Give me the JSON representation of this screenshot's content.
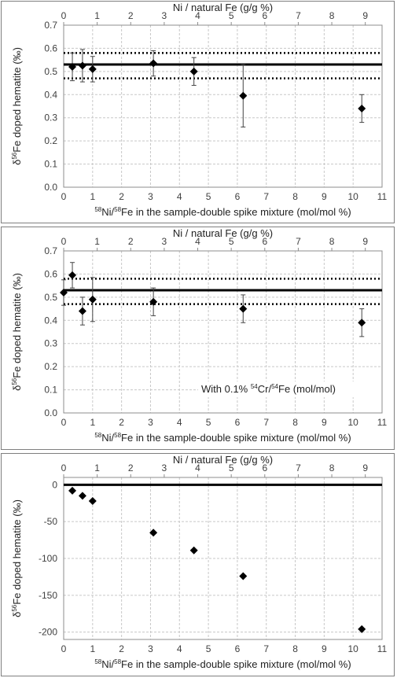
{
  "chart_data": [
    {
      "type": "scatter",
      "top_xlabel": "Ni / natural Fe (g/g %)",
      "xlabel": "Ni/Fe in the sample-double spike mixture (mol/mol %)",
      "xlabel_parts": {
        "sup1": "58",
        "t1": "Ni/",
        "sup2": "58",
        "t2": "Fe in the sample-double spike mixture (mol/mol %)"
      },
      "ylabel_parts": {
        "pre": "δ",
        "sup": "56",
        "post": "Fe doped hematite (‰)"
      },
      "xlim": [
        0,
        11
      ],
      "x_ticks": [
        "0",
        "1",
        "2",
        "3",
        "4",
        "5",
        "6",
        "7",
        "8",
        "9",
        "10",
        "11"
      ],
      "top_xlim": [
        0,
        9.5
      ],
      "top_ticks": [
        "0",
        "1",
        "2",
        "3",
        "4",
        "5",
        "6",
        "7",
        "8",
        "9"
      ],
      "ylim": [
        0,
        0.7
      ],
      "y_ticks": [
        "0.0",
        "0.1",
        "0.2",
        "0.3",
        "0.4",
        "0.5",
        "0.6",
        "0.7"
      ],
      "grid": true,
      "reference_line": 0.53,
      "dotted_lines": [
        0.47,
        0.58
      ],
      "points": [
        {
          "x": 0.3,
          "y": 0.52,
          "err": 0.06
        },
        {
          "x": 0.65,
          "y": 0.525,
          "err": 0.07
        },
        {
          "x": 1.0,
          "y": 0.51,
          "err": 0.055
        },
        {
          "x": 3.1,
          "y": 0.535,
          "err": 0.055
        },
        {
          "x": 4.5,
          "y": 0.5,
          "err": 0.06
        },
        {
          "x": 6.2,
          "y": 0.395,
          "err": 0.135
        },
        {
          "x": 10.3,
          "y": 0.34,
          "err": 0.06
        }
      ],
      "annotation": null
    },
    {
      "type": "scatter",
      "top_xlabel": "Ni / natural Fe (g/g %)",
      "xlabel": "Ni/Fe in the sample-double spike mixture (mol/mol %)",
      "xlabel_parts": {
        "sup1": "58",
        "t1": "Ni/",
        "sup2": "58",
        "t2": "Fe in the sample-double spike mixture (mol/mol %)"
      },
      "ylabel_parts": {
        "pre": "δ",
        "sup": "56",
        "post": "Fe doped hematite (‰)"
      },
      "xlim": [
        0,
        11
      ],
      "x_ticks": [
        "0",
        "1",
        "2",
        "3",
        "4",
        "5",
        "6",
        "7",
        "8",
        "9",
        "10",
        "11"
      ],
      "top_xlim": [
        0,
        9.5
      ],
      "top_ticks": [
        "0",
        "1",
        "2",
        "3",
        "4",
        "5",
        "6",
        "7",
        "8",
        "9"
      ],
      "ylim": [
        0,
        0.7
      ],
      "y_ticks": [
        "0.0",
        "0.1",
        "0.2",
        "0.3",
        "0.4",
        "0.5",
        "0.6",
        "0.7"
      ],
      "grid": true,
      "reference_line": 0.53,
      "dotted_lines": [
        0.47,
        0.58
      ],
      "points": [
        {
          "x": 0.0,
          "y": 0.52,
          "err": 0.055
        },
        {
          "x": 0.3,
          "y": 0.595,
          "err": 0.055
        },
        {
          "x": 0.65,
          "y": 0.44,
          "err": 0.06
        },
        {
          "x": 1.0,
          "y": 0.49,
          "err": 0.095
        },
        {
          "x": 3.1,
          "y": 0.48,
          "err": 0.06
        },
        {
          "x": 6.2,
          "y": 0.45,
          "err": 0.06
        },
        {
          "x": 10.3,
          "y": 0.39,
          "err": 0.06
        }
      ],
      "annotation": {
        "pre": "With 0.1% ",
        "sup1": "54",
        "mid": "Cr/",
        "sup2": "54",
        "post": "Fe (mol/mol)"
      }
    },
    {
      "type": "scatter",
      "top_xlabel": "Ni / natural Fe (g/g %)",
      "xlabel": "Ni/Fe in the sample-double spike mixture (mol/mol %)",
      "xlabel_parts": {
        "sup1": "58",
        "t1": "Ni/",
        "sup2": "58",
        "t2": "Fe in the sample-double spike mixture (mol/mol %)"
      },
      "ylabel_parts": {
        "pre": "δ",
        "sup": "56",
        "post": "Fe doped hematite (‰)"
      },
      "xlim": [
        0,
        11
      ],
      "x_ticks": [
        "0",
        "1",
        "2",
        "3",
        "4",
        "5",
        "6",
        "7",
        "8",
        "9",
        "10",
        "11"
      ],
      "top_xlim": [
        0,
        9.5
      ],
      "top_ticks": [
        "0",
        "1",
        "2",
        "3",
        "4",
        "5",
        "6",
        "7",
        "8",
        "9"
      ],
      "ylim": [
        -210,
        10
      ],
      "y_ticks": [
        "0",
        "-50",
        "-100",
        "-150",
        "-200"
      ],
      "y_tick_values": [
        0,
        -50,
        -100,
        -150,
        -200
      ],
      "grid": true,
      "reference_line": 0,
      "dotted_lines": [],
      "points": [
        {
          "x": 0.3,
          "y": -8
        },
        {
          "x": 0.65,
          "y": -15
        },
        {
          "x": 1.0,
          "y": -22
        },
        {
          "x": 3.1,
          "y": -65
        },
        {
          "x": 4.5,
          "y": -89
        },
        {
          "x": 6.2,
          "y": -124
        },
        {
          "x": 10.3,
          "y": -196
        }
      ],
      "annotation": null
    }
  ]
}
